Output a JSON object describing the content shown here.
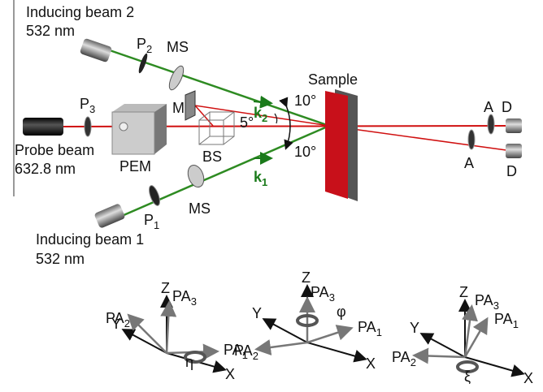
{
  "setup": {
    "inducing_beam_2": {
      "name": "Inducing beam 2",
      "wavelength": "532 nm"
    },
    "inducing_beam_1": {
      "name": "Inducing beam 1",
      "wavelength": "532 nm"
    },
    "probe_beam": {
      "name": "Probe beam",
      "wavelength": "632.8 nm"
    },
    "sample": "Sample",
    "components": {
      "p2": {
        "symbol": "P",
        "index": "2"
      },
      "p3": {
        "symbol": "P",
        "index": "3"
      },
      "p1": {
        "symbol": "P",
        "index": "1"
      },
      "ms_top": "MS",
      "ms_bottom": "MS",
      "pem": "PEM",
      "bs": "BS",
      "m": "M",
      "a_top": "A",
      "a_bottom": "A",
      "d_top": "D",
      "d_bottom": "D"
    },
    "wavevectors": {
      "k2": {
        "symbol": "k",
        "index": "2"
      },
      "k1": {
        "symbol": "k",
        "index": "1"
      }
    },
    "angles": {
      "upper": "10°",
      "lower": "10°",
      "mirror": "5°"
    }
  },
  "frames": [
    {
      "z": "Z",
      "y": "Y",
      "x": "X",
      "pa1": {
        "symbol": "PA",
        "index": "1"
      },
      "pa2": {
        "symbol": "PA",
        "index": "2"
      },
      "pa3": {
        "symbol": "PA",
        "index": "3"
      },
      "rotation": "η"
    },
    {
      "z": "Z",
      "y": "Y",
      "x": "X",
      "pa1": {
        "symbol": "PA",
        "index": "1"
      },
      "pa2": {
        "symbol": "PA",
        "index": "2"
      },
      "pa3": {
        "symbol": "PA",
        "index": "3"
      },
      "rotation": "φ"
    },
    {
      "z": "Z",
      "y": "Y",
      "x": "X",
      "pa1": {
        "symbol": "PA",
        "index": "1"
      },
      "pa2": {
        "symbol": "PA",
        "index": "2"
      },
      "pa3": {
        "symbol": "PA",
        "index": "3"
      },
      "rotation": "ξ"
    }
  ]
}
